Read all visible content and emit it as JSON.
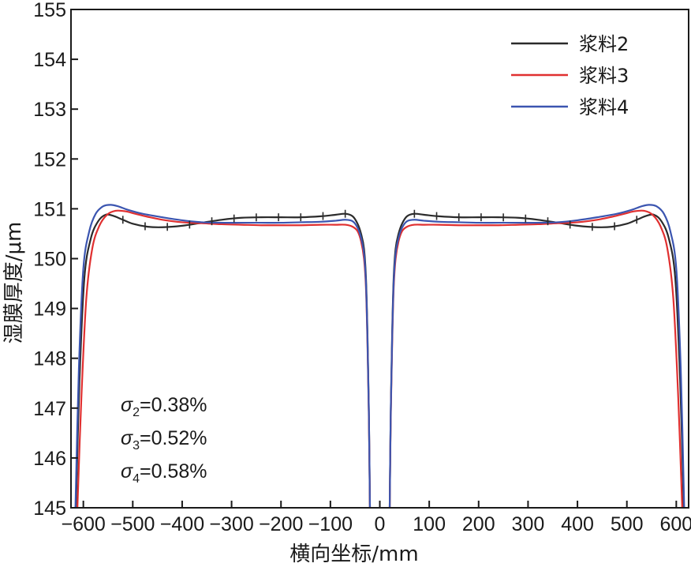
{
  "chart_data": {
    "type": "line",
    "xlabel": "横向坐标/mm",
    "ylabel": "湿膜厚度/μm",
    "xlim": [
      -625,
      625
    ],
    "ylim": [
      145,
      155
    ],
    "xticks": [
      -600,
      -500,
      -400,
      -300,
      -200,
      -100,
      0,
      100,
      200,
      300,
      400,
      500,
      600
    ],
    "xtick_labels": [
      "−600",
      "−500",
      "−400",
      "−300",
      "−200",
      "−100",
      "0",
      "100",
      "200",
      "300",
      "400",
      "500",
      "600"
    ],
    "yticks": [
      145,
      146,
      147,
      148,
      149,
      150,
      151,
      152,
      153,
      154,
      155
    ],
    "legend_position": "top-right",
    "grid": false,
    "series": [
      {
        "name": "浆料2",
        "color": "#2b2b2b",
        "x": [
          -615,
          -608,
          -598,
          -585,
          -570,
          -555,
          -540,
          -520,
          -500,
          -470,
          -440,
          -400,
          -360,
          -320,
          -280,
          -240,
          -200,
          -160,
          -120,
          -90,
          -70,
          -55,
          -45,
          -38,
          -32,
          -28,
          -25,
          -22,
          -20
        ],
        "y": [
          145.0,
          147.5,
          149.6,
          150.4,
          150.75,
          150.88,
          150.86,
          150.78,
          150.7,
          150.64,
          150.63,
          150.66,
          150.72,
          150.78,
          150.82,
          150.83,
          150.83,
          150.83,
          150.85,
          150.88,
          150.9,
          150.85,
          150.7,
          150.5,
          150.2,
          149.6,
          148.5,
          146.8,
          145.0
        ]
      },
      {
        "name": "浆料3",
        "color": "#e03030",
        "x": [
          -612,
          -604,
          -594,
          -582,
          -568,
          -552,
          -535,
          -515,
          -495,
          -470,
          -440,
          -400,
          -360,
          -320,
          -280,
          -240,
          -200,
          -160,
          -120,
          -90,
          -70,
          -55,
          -45,
          -38,
          -32,
          -28,
          -25,
          -22,
          -20
        ],
        "y": [
          145.0,
          147.2,
          149.2,
          150.2,
          150.65,
          150.88,
          150.96,
          150.95,
          150.9,
          150.84,
          150.78,
          150.73,
          150.71,
          150.69,
          150.68,
          150.67,
          150.67,
          150.67,
          150.68,
          150.68,
          150.68,
          150.64,
          150.55,
          150.35,
          150.0,
          149.4,
          148.3,
          146.7,
          145.0
        ]
      },
      {
        "name": "浆料4",
        "color": "#3b55b0",
        "x": [
          -616,
          -609,
          -600,
          -588,
          -575,
          -560,
          -545,
          -530,
          -510,
          -480,
          -440,
          -400,
          -360,
          -320,
          -280,
          -240,
          -200,
          -160,
          -120,
          -90,
          -70,
          -55,
          -45,
          -38,
          -32,
          -28,
          -25,
          -22,
          -20
        ],
        "y": [
          145.0,
          147.8,
          149.8,
          150.55,
          150.9,
          151.05,
          151.08,
          151.05,
          150.98,
          150.9,
          150.83,
          150.77,
          150.73,
          150.72,
          150.72,
          150.72,
          150.72,
          150.73,
          150.74,
          150.76,
          150.78,
          150.75,
          150.62,
          150.42,
          150.1,
          149.5,
          148.4,
          146.8,
          145.0
        ]
      }
    ],
    "mirror_x": true,
    "marker_x": [
      -520,
      -475,
      -430,
      -385,
      -340,
      -295,
      -250,
      -205,
      -160,
      -115,
      -70
    ],
    "annotations": [
      {
        "symbol": "σ",
        "sub": "2",
        "text": "=0.38%"
      },
      {
        "symbol": "σ",
        "sub": "3",
        "text": "=0.52%"
      },
      {
        "symbol": "σ",
        "sub": "4",
        "text": "=0.58%"
      }
    ]
  }
}
